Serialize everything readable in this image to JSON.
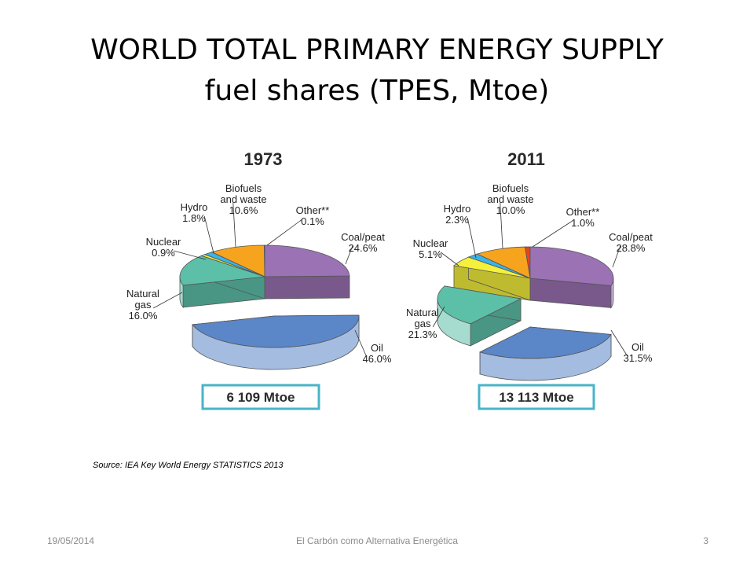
{
  "slide": {
    "title_line1": "WORLD TOTAL PRIMARY ENERGY SUPPLY",
    "title_line2": "fuel shares (TPES, Mtoe)",
    "source": "Source: IEA Key World Energy STATISTICS 2013",
    "footer_date": "19/05/2014",
    "footer_center": "El Carbón como Alternativa Energética",
    "footer_page": "3"
  },
  "colors": {
    "Coal/peat": "#9b72b4",
    "Oil": "#5b86c8",
    "Natural gas": "#5cc0a8",
    "Nuclear": "#f5f03c",
    "Hydro": "#38b4e8",
    "Biofuels and waste": "#f6a41e",
    "Other**": "#e8441c",
    "total_box_border": "#48b4c8",
    "year_text": "#2a2a2a"
  },
  "chart_data": [
    {
      "type": "pie",
      "title": "1973",
      "total_label": "6 109 Mtoe",
      "slices": [
        {
          "name": "Coal/peat",
          "label": "Coal/peat",
          "value": 24.6
        },
        {
          "name": "Oil",
          "label": "Oil",
          "value": 46.0
        },
        {
          "name": "Natural gas",
          "label": "Natural gas",
          "value": 16.0
        },
        {
          "name": "Nuclear",
          "label": "Nuclear",
          "value": 0.9
        },
        {
          "name": "Hydro",
          "label": "Hydro",
          "value": 1.8
        },
        {
          "name": "Biofuels and waste",
          "label": "Biofuels and waste",
          "value": 10.6
        },
        {
          "name": "Other**",
          "label": "Other**",
          "value": 0.1
        }
      ]
    },
    {
      "type": "pie",
      "title": "2011",
      "total_label": "13 113 Mtoe",
      "slices": [
        {
          "name": "Coal/peat",
          "label": "Coal/peat",
          "value": 28.8
        },
        {
          "name": "Oil",
          "label": "Oil",
          "value": 31.5
        },
        {
          "name": "Natural gas",
          "label": "Natural gas",
          "value": 21.3
        },
        {
          "name": "Nuclear",
          "label": "Nuclear",
          "value": 5.1
        },
        {
          "name": "Hydro",
          "label": "Hydro",
          "value": 2.3
        },
        {
          "name": "Biofuels and waste",
          "label": "Biofuels and waste",
          "value": 10.0
        },
        {
          "name": "Other**",
          "label": "Other**",
          "value": 1.0
        }
      ]
    }
  ]
}
